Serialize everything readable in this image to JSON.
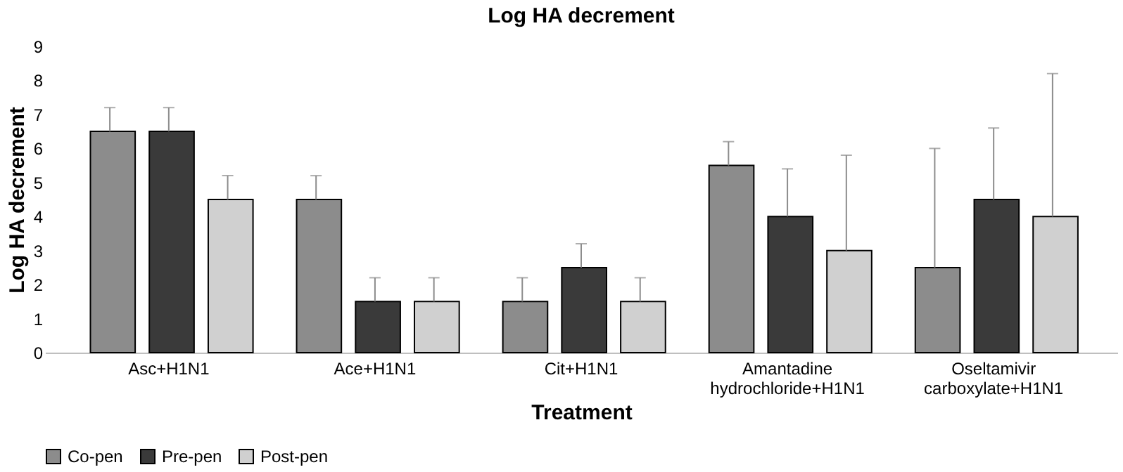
{
  "chart_data": {
    "type": "bar",
    "title": "Log HA decrement",
    "xlabel": "Treatment",
    "ylabel": "Log HA decrement",
    "categories": [
      "Asc+H1N1",
      "Ace+H1N1",
      "Cit+H1N1",
      "Amantadine hydrochloride+H1N1",
      "Oseltamivir carboxylate+H1N1"
    ],
    "series": [
      {
        "name": "Co-pen",
        "color": "#8c8c8c",
        "values": [
          6.5,
          4.5,
          1.5,
          5.5,
          2.5
        ],
        "errors": [
          [
            6.5,
            7.2
          ],
          [
            4.5,
            5.2
          ],
          [
            1.5,
            2.2
          ],
          [
            5.5,
            6.2
          ],
          [
            2.5,
            6.0
          ]
        ]
      },
      {
        "name": "Pre-pen",
        "color": "#3a3a3a",
        "values": [
          6.5,
          1.5,
          2.5,
          4.0,
          4.5
        ],
        "errors": [
          [
            6.5,
            7.2
          ],
          [
            1.5,
            2.2
          ],
          [
            2.5,
            3.2
          ],
          [
            4.0,
            5.4
          ],
          [
            4.5,
            6.6
          ]
        ]
      },
      {
        "name": "Post-pen",
        "color": "#d0d0d0",
        "values": [
          4.5,
          1.5,
          1.5,
          3.0,
          4.0
        ],
        "errors": [
          [
            4.5,
            5.2
          ],
          [
            1.5,
            2.2
          ],
          [
            1.5,
            2.2
          ],
          [
            3.0,
            5.8
          ],
          [
            4.0,
            8.2
          ]
        ]
      }
    ],
    "ylim": [
      0,
      9
    ],
    "yticks": [
      0,
      1,
      2,
      3,
      4,
      5,
      6,
      7,
      8,
      9
    ],
    "grid": false,
    "legend": "bottom"
  }
}
